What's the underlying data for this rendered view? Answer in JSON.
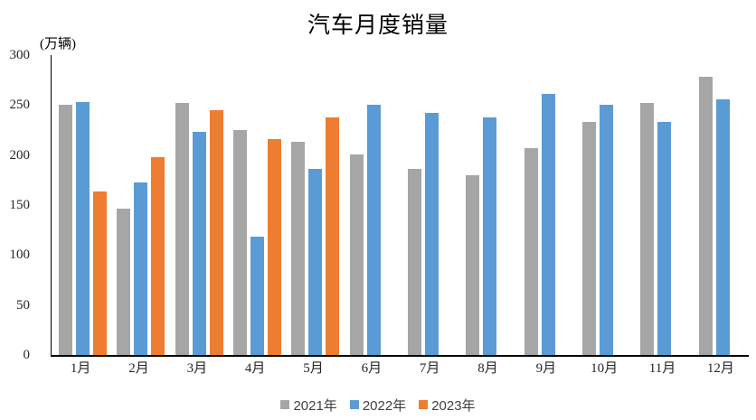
{
  "chart_data": {
    "type": "bar",
    "title": "汽车月度销量",
    "unit_label": "(万辆)",
    "categories": [
      "1月",
      "2月",
      "3月",
      "4月",
      "5月",
      "6月",
      "7月",
      "8月",
      "9月",
      "10月",
      "11月",
      "12月"
    ],
    "series": [
      {
        "name": "2021年",
        "color": "#A6A6A6",
        "values": [
          250,
          146,
          252,
          225,
          213,
          201,
          186,
          180,
          207,
          233,
          252,
          278
        ]
      },
      {
        "name": "2022年",
        "color": "#5B9BD5",
        "values": [
          253,
          173,
          223,
          118,
          186,
          250,
          242,
          238,
          261,
          250,
          233,
          256
        ]
      },
      {
        "name": "2023年",
        "color": "#ED7D31",
        "values": [
          164,
          198,
          245,
          216,
          238,
          null,
          null,
          null,
          null,
          null,
          null,
          null
        ]
      }
    ],
    "ylim": [
      0,
      300
    ],
    "yticks": [
      0,
      50,
      100,
      150,
      200,
      250,
      300
    ],
    "grid": false,
    "legend_position": "bottom",
    "axis_color": "#000000",
    "text_color": "#262626"
  }
}
